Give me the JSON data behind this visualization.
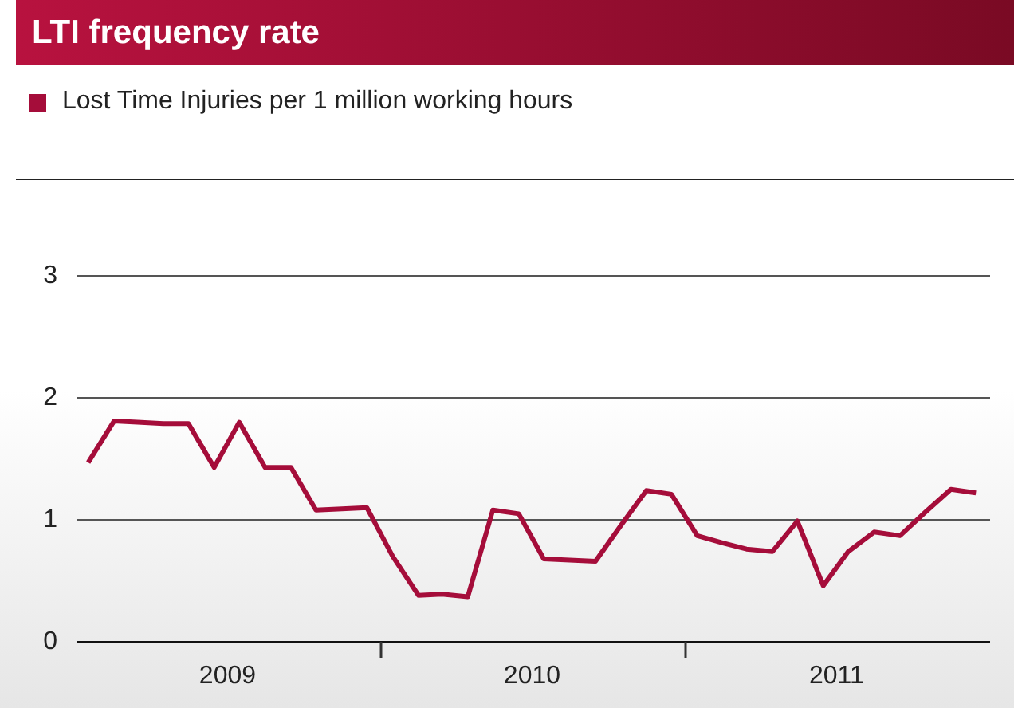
{
  "chart_data": {
    "type": "line",
    "title": "LTI frequency rate",
    "x": [
      "2009-01-15",
      "2009-02-15",
      "2009-03-15",
      "2009-04-15",
      "2009-05-15",
      "2009-06-15",
      "2009-07-15",
      "2009-08-15",
      "2009-09-15",
      "2009-10-15",
      "2009-11-15",
      "2009-12-15",
      "2010-01-15",
      "2010-02-15",
      "2010-03-15",
      "2010-04-15",
      "2010-05-15",
      "2010-06-15",
      "2010-07-15",
      "2010-08-15",
      "2010-09-15",
      "2010-10-15",
      "2010-11-15",
      "2010-12-15",
      "2011-01-15",
      "2011-02-15",
      "2011-03-15",
      "2011-04-15",
      "2011-05-15",
      "2011-06-15",
      "2011-07-15",
      "2011-08-15",
      "2011-09-15",
      "2011-10-15",
      "2011-11-15",
      "2011-12-15"
    ],
    "series": [
      {
        "name": "Lost Time Injuries per 1 million working hours",
        "color": "#a50d3a",
        "values": [
          1.47,
          1.81,
          1.8,
          1.79,
          1.79,
          1.43,
          1.8,
          1.43,
          1.43,
          1.08,
          1.09,
          1.1,
          0.7,
          0.38,
          0.39,
          0.37,
          1.08,
          1.05,
          0.68,
          0.67,
          0.66,
          0.95,
          1.24,
          1.21,
          0.87,
          0.81,
          0.76,
          0.74,
          0.99,
          0.46,
          0.74,
          0.9,
          0.87,
          1.06,
          1.25,
          1.22
        ]
      }
    ],
    "xlim": [
      "2009-01-01",
      "2012-01-01"
    ],
    "xticks": [
      {
        "value": "2009-07-01",
        "label": "2009"
      },
      {
        "value": "2010-01-01",
        "label": null
      },
      {
        "value": "2010-07-01",
        "label": "2010"
      },
      {
        "value": "2011-01-01",
        "label": null
      },
      {
        "value": "2011-07-01",
        "label": "2011"
      }
    ],
    "ylim": [
      0,
      3
    ],
    "yticks": [
      0,
      1,
      2,
      3
    ],
    "grid": "y",
    "legend": "top left",
    "marker": "none"
  }
}
